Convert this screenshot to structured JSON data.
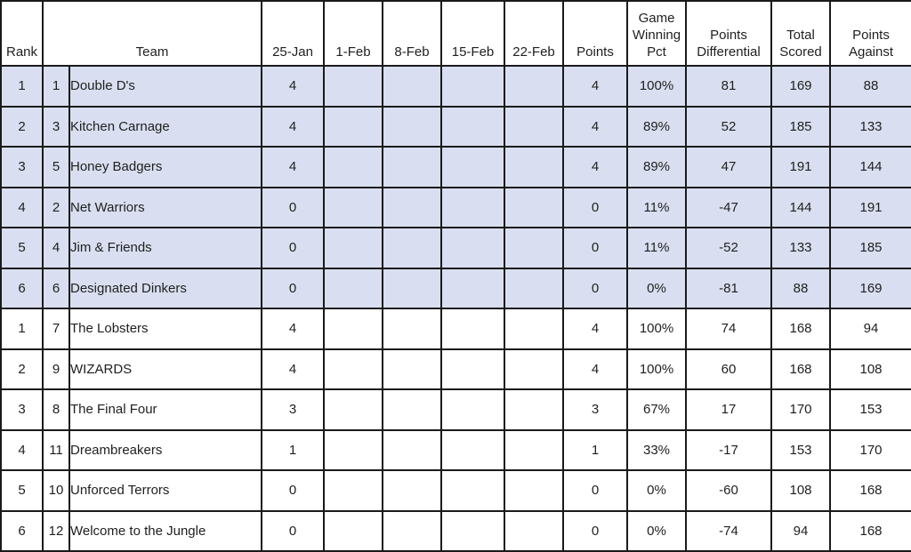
{
  "colors": {
    "row_highlight": "#D9DFF0",
    "grid_border": "#1A1A1A",
    "text": "#1F1F1F",
    "background": "#FFFFFF"
  },
  "table": {
    "headers": {
      "rank": "Rank",
      "seed": "",
      "team": "Team",
      "week_labels": [
        "25-Jan",
        "1-Feb",
        "8-Feb",
        "15-Feb",
        "22-Feb"
      ],
      "points": "Points",
      "game_winning_pct": "Game Winning Pct",
      "points_differential": "Points Differential",
      "total_scored": "Total Scored",
      "points_against": "Points Against"
    },
    "rows": [
      {
        "rank": "1",
        "seed": "1",
        "team": "Double D's",
        "weeks": [
          "4",
          "",
          "",
          "",
          ""
        ],
        "points": "4",
        "game_winning_pct": "100%",
        "points_differential": "81",
        "total_scored": "169",
        "points_against": "88",
        "shaded": true
      },
      {
        "rank": "2",
        "seed": "3",
        "team": "Kitchen Carnage",
        "weeks": [
          "4",
          "",
          "",
          "",
          ""
        ],
        "points": "4",
        "game_winning_pct": "89%",
        "points_differential": "52",
        "total_scored": "185",
        "points_against": "133",
        "shaded": true
      },
      {
        "rank": "3",
        "seed": "5",
        "team": "Honey Badgers",
        "weeks": [
          "4",
          "",
          "",
          "",
          ""
        ],
        "points": "4",
        "game_winning_pct": "89%",
        "points_differential": "47",
        "total_scored": "191",
        "points_against": "144",
        "shaded": true
      },
      {
        "rank": "4",
        "seed": "2",
        "team": "Net Warriors",
        "weeks": [
          "0",
          "",
          "",
          "",
          ""
        ],
        "points": "0",
        "game_winning_pct": "11%",
        "points_differential": "-47",
        "total_scored": "144",
        "points_against": "191",
        "shaded": true
      },
      {
        "rank": "5",
        "seed": "4",
        "team": "Jim & Friends",
        "weeks": [
          "0",
          "",
          "",
          "",
          ""
        ],
        "points": "0",
        "game_winning_pct": "11%",
        "points_differential": "-52",
        "total_scored": "133",
        "points_against": "185",
        "shaded": true
      },
      {
        "rank": "6",
        "seed": "6",
        "team": "Designated Dinkers",
        "weeks": [
          "0",
          "",
          "",
          "",
          ""
        ],
        "points": "0",
        "game_winning_pct": "0%",
        "points_differential": "-81",
        "total_scored": "88",
        "points_against": "169",
        "shaded": true
      },
      {
        "rank": "1",
        "seed": "7",
        "team": "The Lobsters",
        "weeks": [
          "4",
          "",
          "",
          "",
          ""
        ],
        "points": "4",
        "game_winning_pct": "100%",
        "points_differential": "74",
        "total_scored": "168",
        "points_against": "94",
        "shaded": false
      },
      {
        "rank": "2",
        "seed": "9",
        "team": "WIZARDS",
        "weeks": [
          "4",
          "",
          "",
          "",
          ""
        ],
        "points": "4",
        "game_winning_pct": "100%",
        "points_differential": "60",
        "total_scored": "168",
        "points_against": "108",
        "shaded": false
      },
      {
        "rank": "3",
        "seed": "8",
        "team": "The Final Four",
        "weeks": [
          "3",
          "",
          "",
          "",
          ""
        ],
        "points": "3",
        "game_winning_pct": "67%",
        "points_differential": "17",
        "total_scored": "170",
        "points_against": "153",
        "shaded": false
      },
      {
        "rank": "4",
        "seed": "11",
        "team": "Dreambreakers",
        "weeks": [
          "1",
          "",
          "",
          "",
          ""
        ],
        "points": "1",
        "game_winning_pct": "33%",
        "points_differential": "-17",
        "total_scored": "153",
        "points_against": "170",
        "shaded": false
      },
      {
        "rank": "5",
        "seed": "10",
        "team": "Unforced Terrors",
        "weeks": [
          "0",
          "",
          "",
          "",
          ""
        ],
        "points": "0",
        "game_winning_pct": "0%",
        "points_differential": "-60",
        "total_scored": "108",
        "points_against": "168",
        "shaded": false
      },
      {
        "rank": "6",
        "seed": "12",
        "team": "Welcome to the Jungle",
        "weeks": [
          "0",
          "",
          "",
          "",
          ""
        ],
        "points": "0",
        "game_winning_pct": "0%",
        "points_differential": "-74",
        "total_scored": "94",
        "points_against": "168",
        "shaded": false
      }
    ]
  }
}
